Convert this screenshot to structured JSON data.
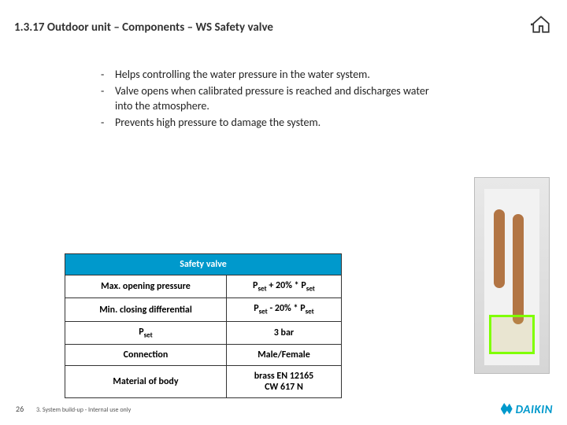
{
  "title": "1.3.17 Outdoor unit – Components – WS Safety valve",
  "bullets": [
    "Helps controlling the water pressure in the water system.",
    "Valve opens when calibrated pressure is reached and discharges water into the atmosphere.",
    "Prevents high pressure to damage the system."
  ],
  "table": {
    "header": "Safety valve",
    "rows": [
      {
        "label": "Max. opening pressure",
        "value_html": "P<sub>set</sub> + 20% * P<sub>set</sub>"
      },
      {
        "label": "Min. closing differential",
        "value_html": "P<sub>set</sub> - 20% * P<sub>set</sub>"
      },
      {
        "label_html": "P<sub>set</sub>",
        "value": "3 bar"
      },
      {
        "label": "Connection",
        "value": "Male/Female"
      },
      {
        "label": "Material of body",
        "value_html": "brass EN 12165<br>CW 617 N"
      }
    ]
  },
  "page_number": "26",
  "footer_text": "3. System build-up - Internal use only",
  "brand": "DAIKIN",
  "colors": {
    "accent": "#0099cc",
    "highlight_border": "#7fff00",
    "text": "#333333",
    "border": "#333333"
  }
}
